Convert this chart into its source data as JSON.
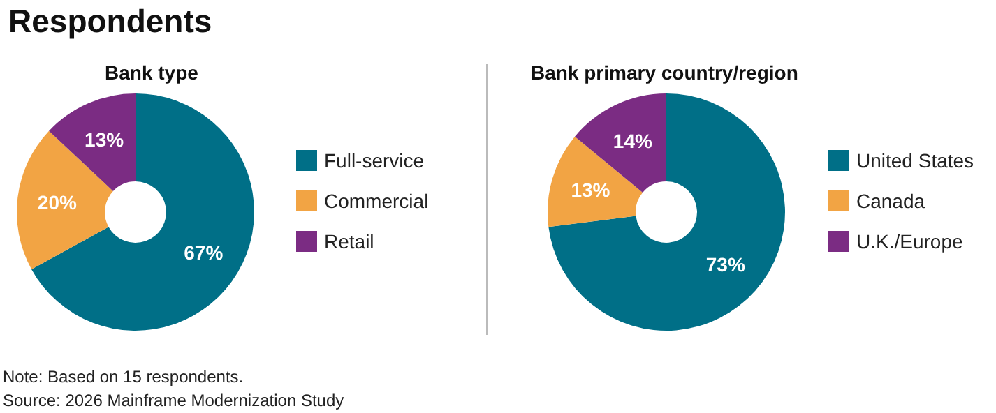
{
  "chart_data": [
    {
      "type": "donut",
      "title": "Respondents",
      "subtitle": "Bank type",
      "categories": [
        "Full-service",
        "Commercial",
        "Retail"
      ],
      "values": [
        67,
        20,
        13
      ],
      "value_labels": [
        "67%",
        "20%",
        "13%"
      ],
      "colors": [
        "#006f87",
        "#f2a444",
        "#7b2c83"
      ],
      "legend": "right",
      "annotations": [
        "Note: Based on 15 respondents.",
        "Source: 2026 Mainframe Modernization Study"
      ]
    },
    {
      "type": "donut",
      "title": "Bank primary country/region",
      "categories": [
        "United States",
        "Canada",
        "U.K./Europe"
      ],
      "values": [
        73,
        13,
        14
      ],
      "value_labels": [
        "73%",
        "13%",
        "14%"
      ],
      "colors": [
        "#006f87",
        "#f2a444",
        "#7b2c83"
      ],
      "legend": "right"
    }
  ]
}
